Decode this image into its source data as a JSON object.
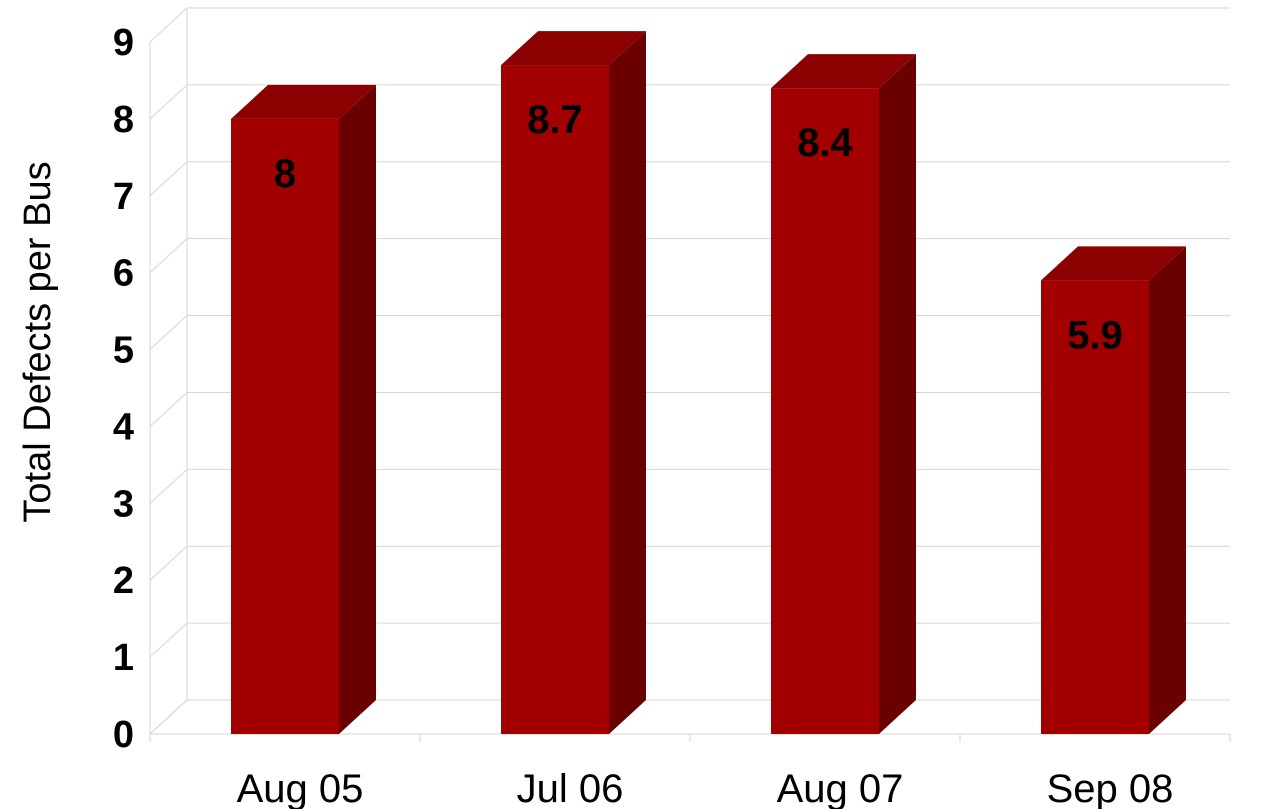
{
  "chart_data": {
    "type": "bar",
    "style": "3d-column",
    "categories": [
      "Aug 05",
      "Jul 06",
      "Aug 07",
      "Sep 08"
    ],
    "values": [
      8,
      8.7,
      8.4,
      5.9
    ],
    "data_labels": [
      "8",
      "8.7",
      "8.4",
      "5.9"
    ],
    "xlabel": "",
    "ylabel": "Total Defects per Bus",
    "ylim": [
      0,
      9
    ],
    "yticks": [
      "0",
      "1",
      "2",
      "3",
      "4",
      "5",
      "6",
      "7",
      "8",
      "9"
    ],
    "grid": true,
    "legend": "none",
    "colors": {
      "front": "#a20000",
      "top": "#8b0000",
      "side": "#6b0000"
    }
  }
}
